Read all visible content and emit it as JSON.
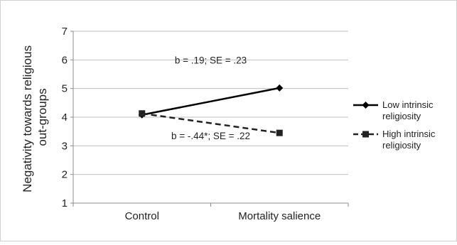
{
  "chart_data": {
    "type": "line",
    "categories": [
      "Control",
      "Mortality salience"
    ],
    "ylabel_lines": [
      "Negativity towards religious",
      "out-groups"
    ],
    "ylim": [
      1,
      7
    ],
    "yticks": [
      "1",
      "2",
      "3",
      "4",
      "5",
      "6",
      "7"
    ],
    "grid": true,
    "legend_position": "right",
    "series": [
      {
        "name_lines": [
          "Low intrinsic",
          "religiosity"
        ],
        "values": [
          4.08,
          5.02
        ],
        "color": "#000000",
        "line_style": "solid",
        "marker": "diamond"
      },
      {
        "name_lines": [
          "High intrinsic",
          "religiosity"
        ],
        "values": [
          4.13,
          3.45
        ],
        "color": "#222222",
        "line_style": "dashed",
        "marker": "square"
      }
    ],
    "annotations": [
      {
        "text": "b = .19; SE = .23",
        "x": 0.5,
        "y": 6.0
      },
      {
        "text": "b = -.44*; SE = .22",
        "x": 0.5,
        "y": 3.35
      }
    ]
  }
}
